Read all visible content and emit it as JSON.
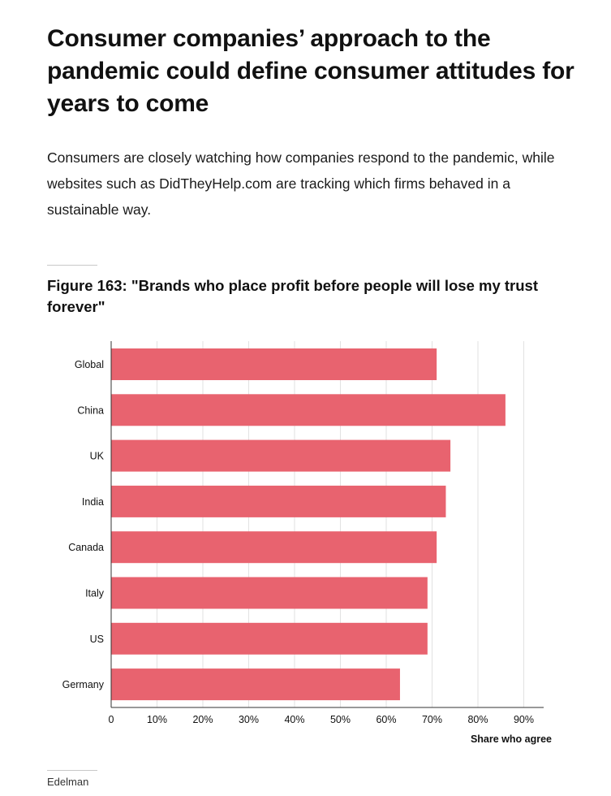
{
  "headline": "Consumer companies’ approach to the pandemic could define consumer attitudes for years to come",
  "subhead": "Consumers are closely watching how companies respond to the pandemic, while websites such as DidTheyHelp.com are tracking which firms behaved in a sustainable way.",
  "figure_title": "Figure 163: \"Brands who place profit before people will lose my trust forever\"",
  "source": "Edelman",
  "colors": {
    "bar": "#e8636f",
    "grid": "#e2e2e2",
    "axis": "#333333",
    "text": "#111111"
  },
  "chart_data": {
    "type": "bar",
    "orientation": "horizontal",
    "categories": [
      "Global",
      "China",
      "UK",
      "India",
      "Canada",
      "Italy",
      "US",
      "Germany"
    ],
    "values": [
      71,
      86,
      74,
      73,
      71,
      69,
      69,
      63
    ],
    "xlabel": "Share who agree",
    "ylabel": "",
    "xlim": [
      0,
      95
    ],
    "xticks": [
      0,
      10,
      20,
      30,
      40,
      50,
      60,
      70,
      80,
      90
    ],
    "xtick_labels": [
      "0",
      "10%",
      "20%",
      "30%",
      "40%",
      "50%",
      "60%",
      "70%",
      "80%",
      "90%"
    ],
    "grid": "vertical",
    "legend": "none"
  }
}
